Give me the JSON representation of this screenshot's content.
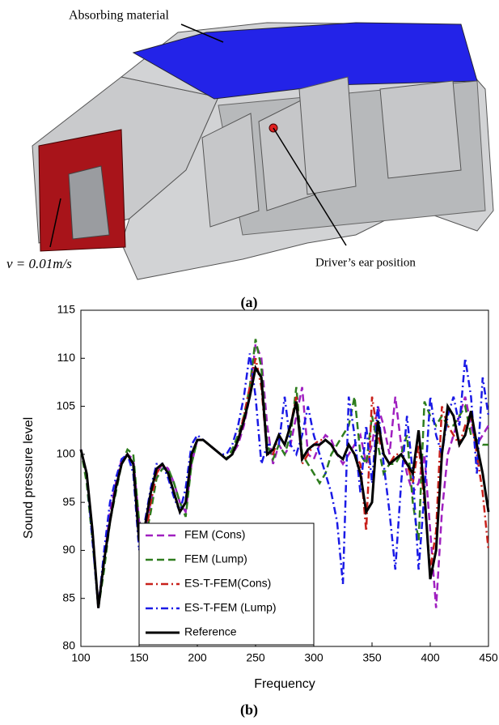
{
  "figure_a": {
    "annotations": [
      "Absorbing material",
      "v = 0.01m/s",
      "Driver’s ear position"
    ],
    "caption": "(a)"
  },
  "chart_data": {
    "type": "line",
    "caption": "(b)",
    "xlabel": "Frequency",
    "ylabel": "Sound pressure level",
    "x": [
      100,
      105,
      110,
      115,
      120,
      125,
      130,
      135,
      140,
      145,
      150,
      155,
      160,
      165,
      170,
      175,
      180,
      185,
      190,
      195,
      200,
      205,
      210,
      215,
      220,
      225,
      230,
      235,
      240,
      245,
      250,
      255,
      260,
      265,
      270,
      275,
      280,
      285,
      290,
      295,
      300,
      305,
      310,
      315,
      320,
      325,
      330,
      335,
      340,
      345,
      350,
      355,
      360,
      365,
      370,
      375,
      380,
      385,
      390,
      395,
      400,
      405,
      410,
      415,
      420,
      425,
      430,
      435,
      440,
      445,
      450
    ],
    "xlim": [
      100,
      450
    ],
    "xticks": [
      100,
      150,
      200,
      250,
      300,
      350,
      400,
      450
    ],
    "ylim": [
      80,
      115
    ],
    "yticks": [
      80,
      85,
      90,
      95,
      100,
      105,
      110,
      115
    ],
    "legend": "lower left",
    "series": [
      {
        "name": "FEM (Cons)",
        "color": "#a020c0",
        "linestyle": "dashed",
        "values": [
          100.5,
          97.5,
          91,
          84.5,
          89,
          94,
          97,
          99.5,
          100,
          99.5,
          93,
          92,
          95,
          98,
          99,
          98.5,
          97,
          95,
          94,
          99,
          101.5,
          101.5,
          101,
          100.5,
          100,
          99.5,
          100,
          101,
          103,
          106,
          111.5,
          110,
          103,
          99,
          101,
          100,
          101,
          104,
          107,
          100,
          99.5,
          101,
          102,
          101.5,
          100,
          99,
          100,
          101,
          102,
          99,
          101,
          105,
          103,
          100,
          106,
          101,
          98,
          96,
          97,
          100,
          92,
          84,
          94,
          100,
          102,
          104,
          106,
          103,
          101,
          102,
          103
        ]
      },
      {
        "name": "FEM (Lump)",
        "color": "#2e7d1e",
        "linestyle": "dashed",
        "values": [
          100.5,
          97,
          91,
          84,
          88,
          93,
          96,
          99,
          100.5,
          100,
          93,
          91,
          94,
          97.5,
          98.5,
          98.5,
          97,
          95,
          93.5,
          99,
          101.5,
          101.5,
          101,
          100.5,
          100,
          99.5,
          100.5,
          102,
          104,
          107,
          112,
          109,
          101,
          99.5,
          101,
          100,
          102,
          107,
          100,
          99,
          98,
          97,
          98,
          100,
          101,
          102,
          103,
          106,
          100,
          99,
          104,
          101,
          98,
          99,
          99,
          100,
          102,
          95,
          91,
          105.5,
          104,
          103,
          104,
          103,
          103,
          104,
          105,
          102,
          101.5,
          101,
          101
        ]
      },
      {
        "name": "ES-T-FEM(Cons)",
        "color": "#c8201a",
        "linestyle": "dashdot",
        "values": [
          100.5,
          98,
          92,
          84,
          89,
          93,
          96.5,
          99,
          100,
          99,
          91,
          91,
          95,
          98,
          99,
          98,
          96,
          94,
          95,
          100,
          101.5,
          101.5,
          101,
          100.5,
          100,
          99.5,
          100,
          101.5,
          104,
          107,
          110,
          107,
          100,
          100,
          102,
          101,
          103,
          106,
          99,
          100,
          101,
          101.5,
          101.5,
          101,
          100,
          99.5,
          101,
          100,
          99,
          92,
          106,
          102,
          100,
          99,
          100,
          100,
          99,
          97,
          101,
          95,
          88,
          92,
          105,
          103,
          102,
          101,
          103,
          104,
          100,
          96,
          90
        ]
      },
      {
        "name": "ES-T-FEM (Lump)",
        "color": "#1a1ae6",
        "linestyle": "dashdot",
        "values": [
          100.5,
          98,
          91,
          84,
          90,
          95,
          97.5,
          99.5,
          100,
          98,
          90,
          93,
          96.5,
          99,
          99,
          97.5,
          95.5,
          94,
          96.5,
          101,
          102,
          101.5,
          101,
          100.5,
          100,
          100,
          101,
          103,
          106,
          110.5,
          106,
          99,
          101,
          101,
          101,
          106,
          101,
          100,
          102,
          105,
          102,
          100,
          98,
          96,
          93,
          86.5,
          106,
          102,
          96,
          103,
          97,
          105,
          99,
          94,
          88,
          97,
          104,
          98,
          88,
          96,
          106,
          102,
          100,
          104,
          106,
          103,
          110,
          106,
          98,
          108,
          104
        ]
      },
      {
        "name": "Reference",
        "color": "#000000",
        "linestyle": "solid",
        "values": [
          100.5,
          98,
          92,
          84,
          89,
          93,
          96.5,
          99,
          100,
          99,
          91,
          92.5,
          96,
          98.5,
          99,
          98,
          96,
          94,
          95,
          100,
          101.5,
          101.5,
          101,
          100.5,
          100,
          99.5,
          100,
          101.5,
          103.5,
          106,
          109,
          108,
          100,
          100.5,
          102,
          101,
          103,
          105.5,
          99.5,
          100.5,
          101,
          101,
          101.5,
          101,
          100,
          99.5,
          101,
          100,
          98,
          94,
          95,
          103.5,
          100,
          99,
          99.5,
          100,
          99,
          98,
          102.5,
          96,
          87,
          90,
          100,
          105,
          104,
          101,
          102,
          104.5,
          101,
          98,
          94
        ]
      }
    ]
  }
}
